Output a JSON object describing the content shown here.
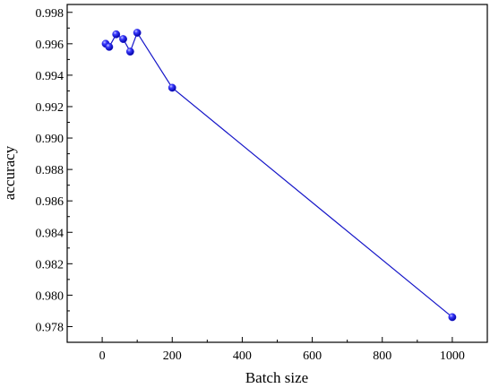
{
  "chart_data": {
    "type": "line",
    "title": "",
    "xlabel": "Batch size",
    "ylabel": "accuracy",
    "xlim": [
      -100,
      1100
    ],
    "ylim": [
      0.977,
      0.9985
    ],
    "x_ticks": [
      0,
      200,
      400,
      600,
      800,
      1000
    ],
    "x_tick_labels": [
      "0",
      "200",
      "400",
      "600",
      "800",
      "1000"
    ],
    "y_ticks": [
      0.978,
      0.98,
      0.982,
      0.984,
      0.986,
      0.988,
      0.99,
      0.992,
      0.994,
      0.996,
      0.998
    ],
    "y_tick_labels": [
      "0.978",
      "0.980",
      "0.982",
      "0.984",
      "0.986",
      "0.988",
      "0.990",
      "0.992",
      "0.994",
      "0.996",
      "0.998"
    ],
    "grid": false,
    "legend": "none",
    "series": [
      {
        "x": [
          10,
          20,
          40,
          60,
          80,
          100,
          200,
          1000
        ],
        "y": [
          0.996,
          0.9958,
          0.9966,
          0.9963,
          0.9955,
          0.9967,
          0.9932,
          0.9786
        ],
        "line_color": "#1515c8",
        "marker_color": "#1a1adc"
      }
    ]
  }
}
